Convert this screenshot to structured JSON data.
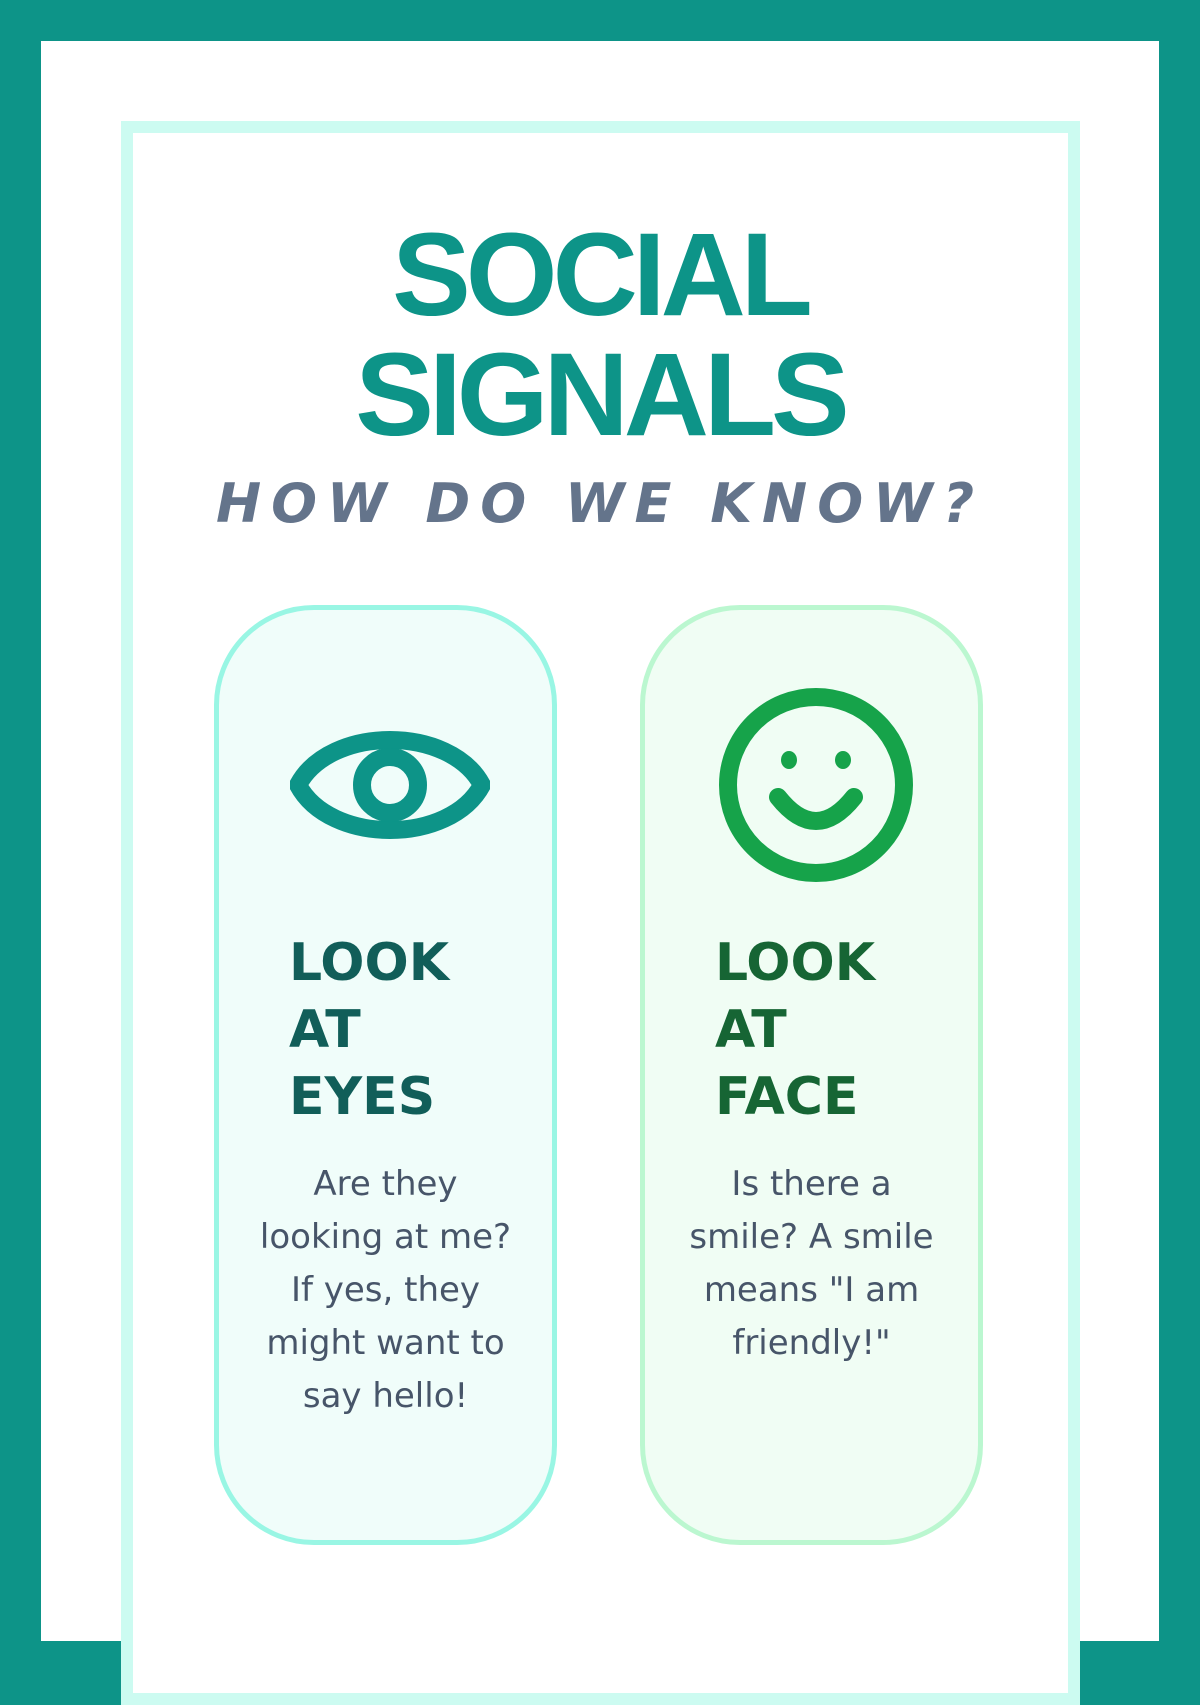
{
  "title": "SOCIAL SIGNALS",
  "subtitle": "HOW DO WE KNOW?",
  "colors": {
    "brand": "#0d9488",
    "face_accent": "#16a34a"
  },
  "cards": [
    {
      "icon": "eye-icon",
      "heading": "LOOK\nAT\nEYES",
      "body": "Are they looking at me? If yes, they might want to say hello!"
    },
    {
      "icon": "smiley-face-icon",
      "heading": "LOOK\nAT\nFACE",
      "body": "Is there a smile? A smile means \"I am friendly!\""
    }
  ]
}
